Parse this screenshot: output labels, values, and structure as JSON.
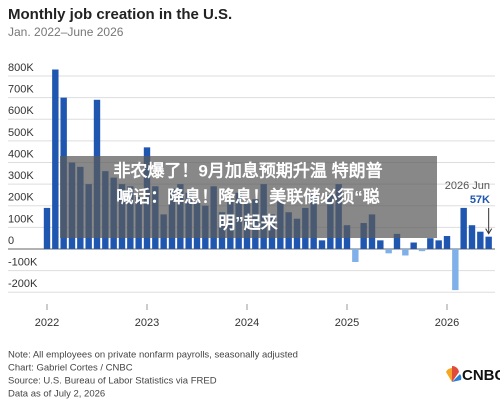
{
  "chart_data": {
    "type": "bar",
    "title": "Monthly job creation in the U.S.",
    "subtitle": "Jan. 2022–June 2026",
    "categories": [
      "2022",
      null,
      null,
      null,
      null,
      null,
      null,
      null,
      null,
      null,
      null,
      null,
      "2023",
      null,
      null,
      null,
      null,
      null,
      null,
      null,
      null,
      null,
      null,
      null,
      "2024",
      null,
      null,
      null,
      null,
      null,
      null,
      null,
      null,
      null,
      null,
      null,
      "2025",
      null,
      null,
      null,
      null,
      null,
      null,
      null,
      null,
      null,
      null,
      null,
      "2026",
      null,
      null,
      null,
      null,
      null
    ],
    "values": [
      190000,
      830000,
      700000,
      400000,
      380000,
      300000,
      690000,
      360000,
      330000,
      300000,
      290000,
      240000,
      470000,
      290000,
      160000,
      280000,
      300000,
      260000,
      220000,
      200000,
      290000,
      170000,
      220000,
      260000,
      210000,
      230000,
      300000,
      160000,
      220000,
      170000,
      140000,
      190000,
      250000,
      40000,
      250000,
      300000,
      110000,
      -60000,
      120000,
      160000,
      40000,
      -20000,
      70000,
      -30000,
      30000,
      -10000,
      50000,
      40000,
      60000,
      -190000,
      190000,
      110000,
      80000,
      57000
    ],
    "color": "#1f56b0",
    "negative_color": "#7fb0ea",
    "ylim": [
      -250000,
      850000
    ],
    "yticks": [
      {
        "value": -200000,
        "label": "-200K"
      },
      {
        "value": -100000,
        "label": "-100K"
      },
      {
        "value": 0,
        "label": "0"
      },
      {
        "value": 100000,
        "label": "100K"
      },
      {
        "value": 200000,
        "label": "200K"
      },
      {
        "value": 300000,
        "label": "300K"
      },
      {
        "value": 400000,
        "label": "400K"
      },
      {
        "value": 500000,
        "label": "500K"
      },
      {
        "value": 600000,
        "label": "600K"
      },
      {
        "value": 700000,
        "label": "700K"
      },
      {
        "value": 800000,
        "label": "800K"
      }
    ],
    "grid": true,
    "annotation": {
      "text": "2026 Jun",
      "value_label": "57K"
    },
    "note": "Note: All employees on private nonfarm payrolls, seasonally adjusted",
    "credit": "Chart: Gabriel Cortes / CNBC",
    "source": "Source: U.S. Bureau of Labor Statistics via FRED",
    "date_note": "Data as of July 2, 2026",
    "logo": "CNBC"
  },
  "overlay": {
    "lines": [
      "非农爆了！9月加息预期升温 特朗普",
      "喊话：降息！降息！美联储必须“聪",
      "明”起来"
    ]
  }
}
